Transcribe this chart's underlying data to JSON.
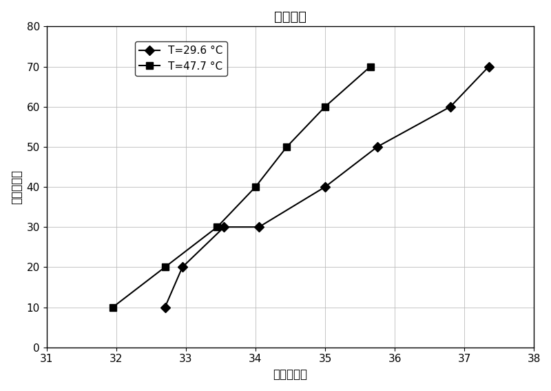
{
  "title": "槽组水温",
  "xlabel": "电压，伏特",
  "ylabel": "电流，安培",
  "xlim": [
    31,
    38
  ],
  "ylim": [
    0,
    80
  ],
  "xticks": [
    31,
    32,
    33,
    34,
    35,
    36,
    37,
    38
  ],
  "yticks": [
    0,
    10,
    20,
    30,
    40,
    50,
    60,
    70,
    80
  ],
  "series": [
    {
      "label": "T=29.6 °C",
      "x": [
        32.7,
        32.95,
        33.55,
        34.05,
        35.0,
        35.75,
        36.8,
        37.35
      ],
      "y": [
        10,
        20,
        30,
        30,
        40,
        50,
        60,
        70
      ],
      "color": "#000000",
      "marker": "D",
      "markersize": 7,
      "linewidth": 1.5
    },
    {
      "label": "T=47.7 °C",
      "x": [
        31.95,
        32.7,
        33.45,
        34.0,
        34.45,
        35.0,
        35.65
      ],
      "y": [
        10,
        20,
        30,
        40,
        50,
        60,
        70
      ],
      "color": "#000000",
      "marker": "s",
      "markersize": 7,
      "linewidth": 1.5
    }
  ],
  "background_color": "#ffffff",
  "grid": true,
  "grid_color": "#bbbbbb",
  "grid_linewidth": 0.6,
  "title_fontsize": 14,
  "axis_label_fontsize": 12,
  "tick_fontsize": 11,
  "legend_fontsize": 11
}
